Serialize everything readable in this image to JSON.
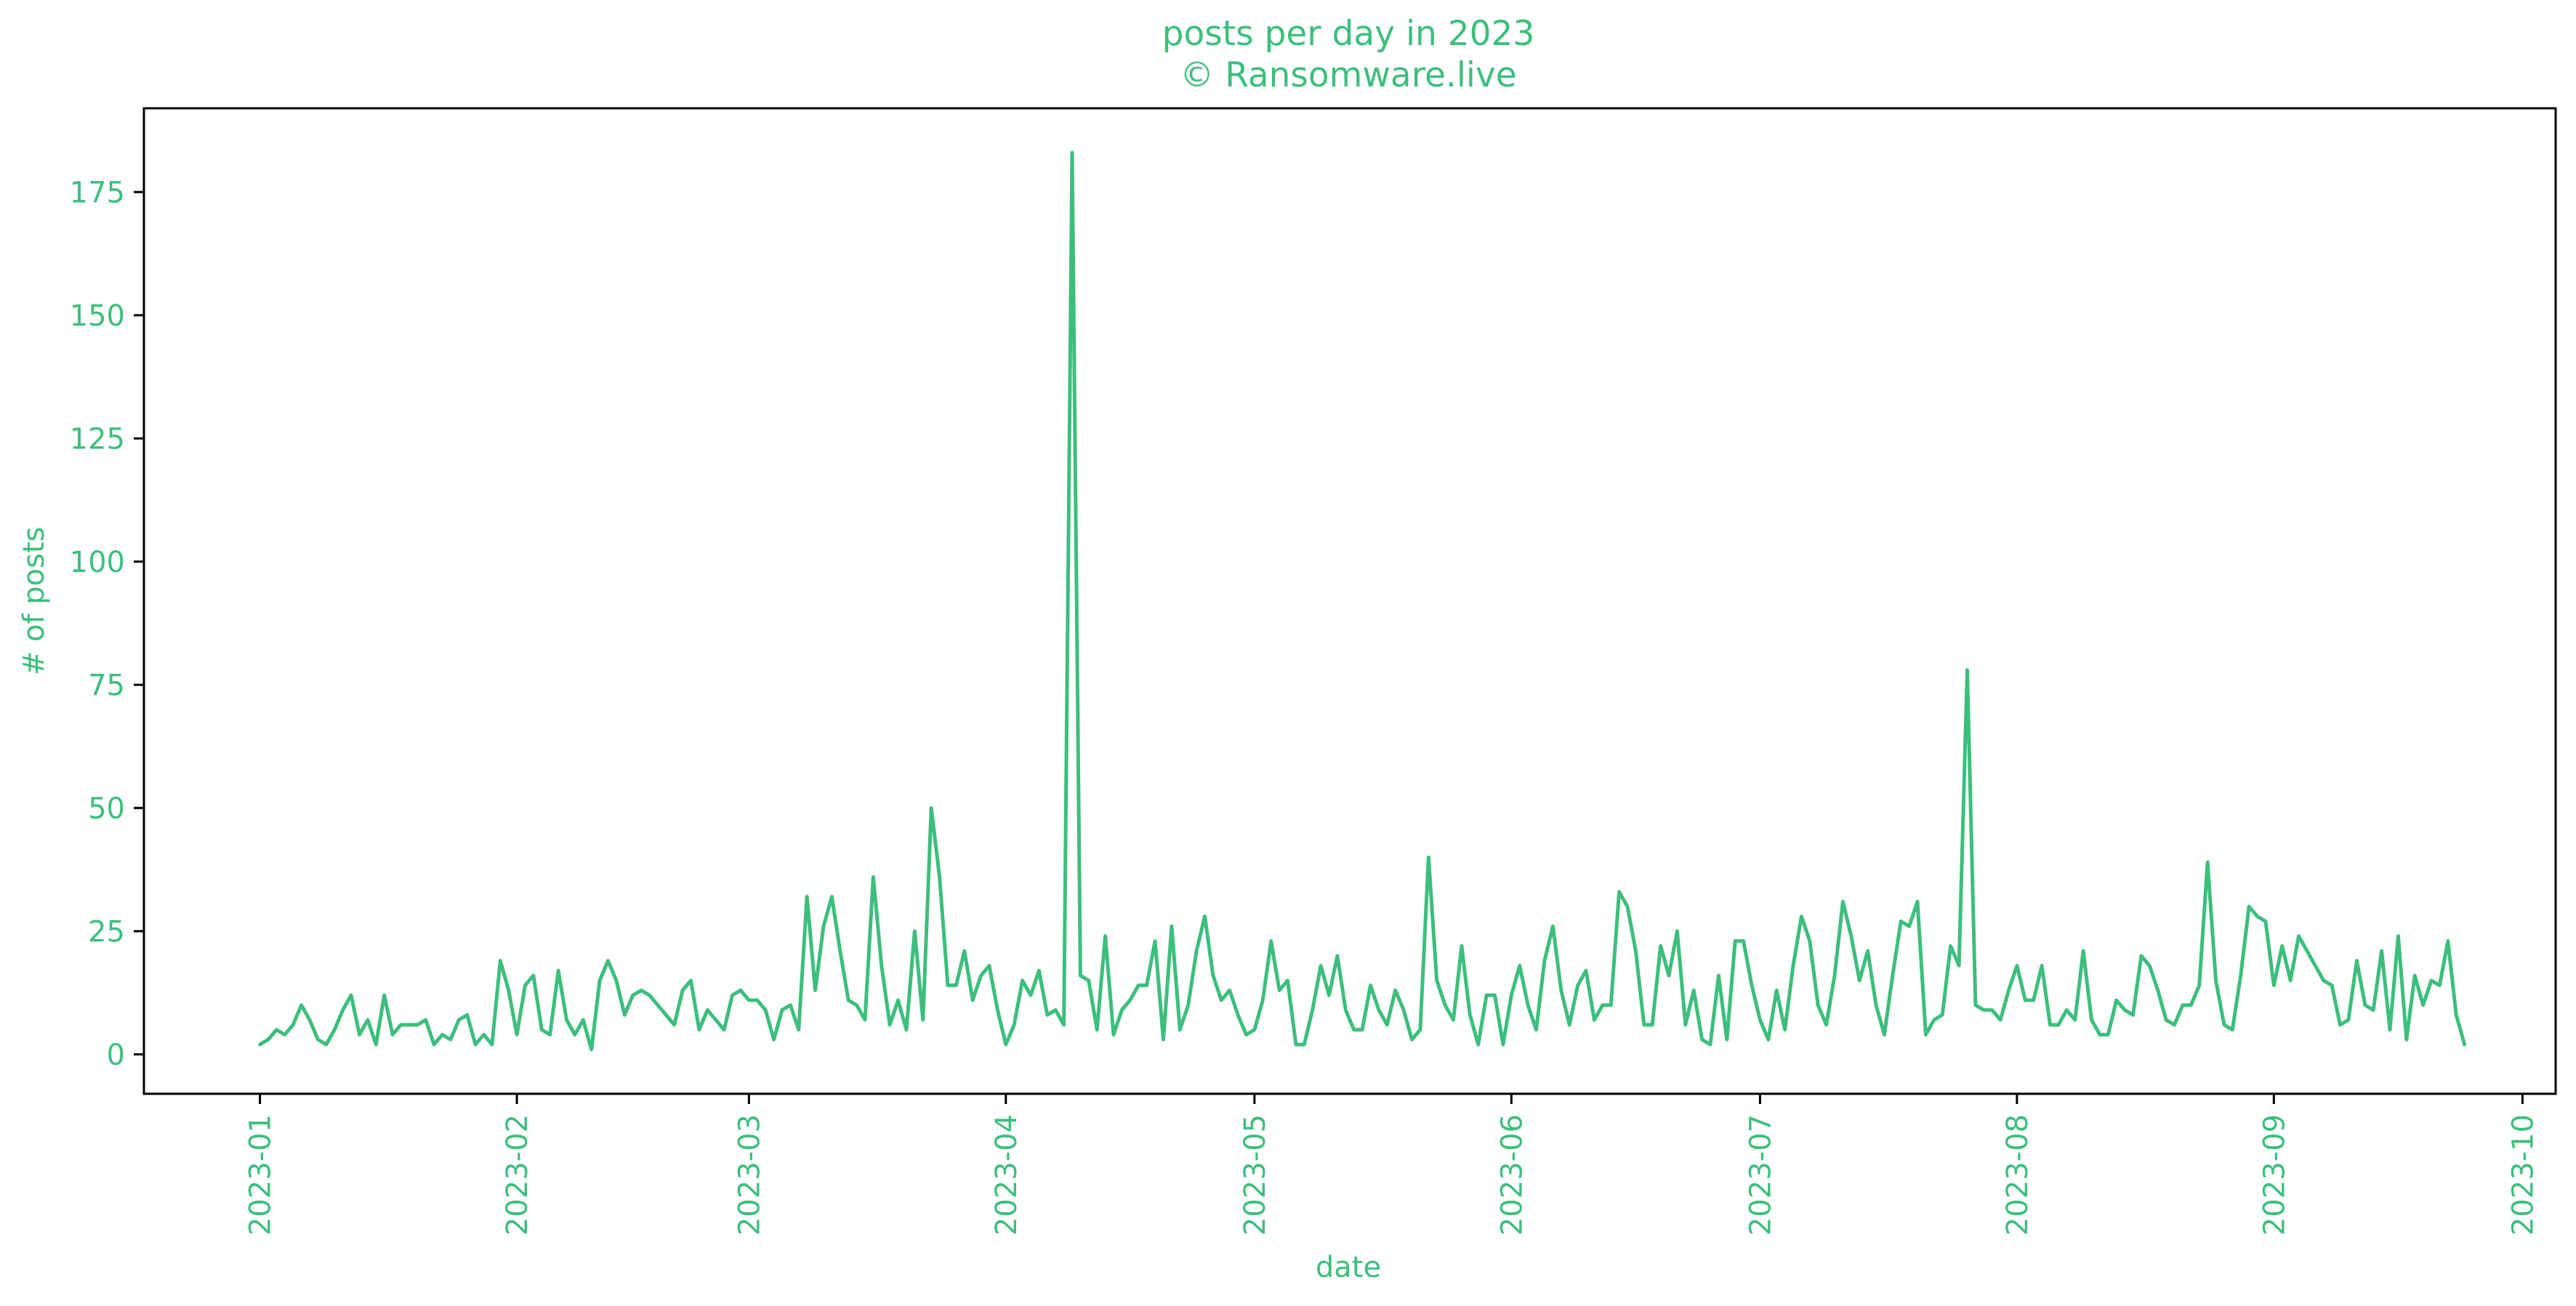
{
  "colors": {
    "accent": "#3dbe7d",
    "frame": "#000000",
    "background": "#ffffff"
  },
  "chart_data": {
    "type": "line",
    "title": "posts per day in 2023",
    "subtitle": "© Ransomware.live",
    "xlabel": "date",
    "ylabel": "# of posts",
    "x_axis_type": "date",
    "xlim": [
      "2022-12-18",
      "2023-10-05"
    ],
    "ylim": [
      -8,
      192
    ],
    "grid": false,
    "xticks": [
      "2023-01-01",
      "2023-02-01",
      "2023-03-01",
      "2023-04-01",
      "2023-05-01",
      "2023-06-01",
      "2023-07-01",
      "2023-08-01",
      "2023-09-01",
      "2023-10-01"
    ],
    "xtick_labels": [
      "2023-01",
      "2023-02",
      "2023-03",
      "2023-04",
      "2023-05",
      "2023-06",
      "2023-07",
      "2023-08",
      "2023-09",
      "2023-10"
    ],
    "yticks": [
      0,
      25,
      50,
      75,
      100,
      125,
      150,
      175
    ],
    "ytick_labels": [
      "0",
      "25",
      "50",
      "75",
      "100",
      "125",
      "150",
      "175"
    ],
    "series": [
      {
        "start_date": "2023-01-01",
        "values": [
          2,
          3,
          5,
          4,
          6,
          10,
          7,
          3,
          2,
          5,
          9,
          12,
          4,
          7,
          2,
          12,
          4,
          6,
          6,
          6,
          7,
          2,
          4,
          3,
          7,
          8,
          2,
          4,
          2,
          19,
          13,
          4,
          14,
          16,
          5,
          4,
          17,
          7,
          4,
          7,
          1,
          15,
          19,
          15,
          8,
          12,
          13,
          12,
          10,
          8,
          6,
          13,
          15,
          5,
          9,
          7,
          5,
          12,
          13,
          11,
          11,
          9,
          3,
          9,
          10,
          5,
          32,
          13,
          26,
          32,
          21,
          11,
          10,
          7,
          36,
          18,
          6,
          11,
          5,
          25,
          7,
          50,
          36,
          14,
          14,
          21,
          11,
          16,
          18,
          9,
          2,
          6,
          15,
          12,
          17,
          8,
          9,
          6,
          183,
          16,
          15,
          5,
          24,
          4,
          9,
          11,
          14,
          14,
          23,
          3,
          26,
          5,
          10,
          21,
          28,
          16,
          11,
          13,
          8,
          4,
          5,
          11,
          23,
          13,
          15,
          2,
          2,
          9,
          18,
          12,
          20,
          9,
          5,
          5,
          14,
          9,
          6,
          13,
          9,
          3,
          5,
          40,
          15,
          10,
          7,
          22,
          8,
          2,
          12,
          12,
          2,
          12,
          18,
          10,
          5,
          19,
          26,
          13,
          6,
          14,
          17,
          7,
          10,
          10,
          33,
          30,
          21,
          6,
          6,
          22,
          16,
          25,
          6,
          13,
          3,
          2,
          16,
          3,
          23,
          23,
          14,
          7,
          3,
          13,
          5,
          18,
          28,
          23,
          10,
          6,
          16,
          31,
          24,
          15,
          21,
          10,
          4,
          16,
          27,
          26,
          31,
          4,
          7,
          8,
          22,
          18,
          78,
          10,
          9,
          9,
          7,
          13,
          18,
          11,
          11,
          18,
          6,
          6,
          9,
          7,
          21,
          7,
          4,
          4,
          11,
          9,
          8,
          20,
          18,
          13,
          7,
          6,
          10,
          10,
          14,
          39,
          15,
          6,
          5,
          16,
          30,
          28,
          27,
          14,
          22,
          15,
          24,
          21,
          18,
          15,
          14,
          6,
          7,
          19,
          10,
          9,
          21,
          5,
          24,
          3,
          16,
          10,
          15,
          14,
          23,
          8,
          2
        ]
      }
    ]
  }
}
